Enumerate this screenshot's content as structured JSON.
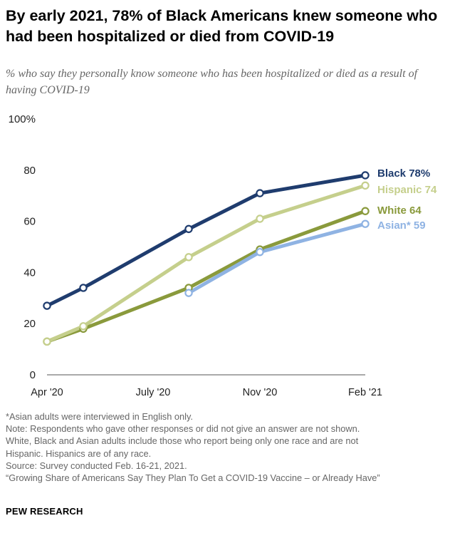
{
  "title": "By early 2021, 78% of Black Americans knew someone who had been hospitalized or died from COVID-19",
  "subtitle": "% who say they personally know someone who has been hospitalized or died as a result of having COVID-19",
  "chart_data": {
    "type": "line",
    "xlabel": "",
    "ylabel": "",
    "x_tick_labels": [
      "Apr '20",
      "July '20",
      "Nov '20",
      "Feb '21"
    ],
    "y_ticks": [
      0,
      20,
      40,
      60,
      80,
      100
    ],
    "y_tick_labels": [
      "0",
      "20",
      "40",
      "60",
      "80",
      "100%"
    ],
    "ylim": [
      0,
      100
    ],
    "grid": false,
    "legend": "direct labels at line ends",
    "series": [
      {
        "name": "White",
        "end_label": "White 64",
        "color": "#8a9a3c",
        "points": [
          {
            "survey": "Apr '20",
            "value": 13
          },
          {
            "survey": "May '20",
            "value": 18
          },
          {
            "survey": "Aug '20",
            "value": 34
          },
          {
            "survey": "Nov '20",
            "value": 49
          },
          {
            "survey": "Feb '21",
            "value": 64
          }
        ]
      },
      {
        "name": "Asian*",
        "end_label": "Asian* 59",
        "color": "#8fb3e3",
        "points": [
          {
            "survey": "Aug '20",
            "value": 32
          },
          {
            "survey": "Nov '20",
            "value": 48
          },
          {
            "survey": "Feb '21",
            "value": 59
          }
        ]
      },
      {
        "name": "Hispanic",
        "end_label": "Hispanic 74",
        "color": "#c5cf8c",
        "points": [
          {
            "survey": "Apr '20",
            "value": 13
          },
          {
            "survey": "May '20",
            "value": 19
          },
          {
            "survey": "Aug '20",
            "value": 46
          },
          {
            "survey": "Nov '20",
            "value": 61
          },
          {
            "survey": "Feb '21",
            "value": 74
          }
        ]
      },
      {
        "name": "Black",
        "end_label": "Black 78%",
        "color": "#1f3c6e",
        "points": [
          {
            "survey": "Apr '20",
            "value": 27
          },
          {
            "survey": "May '20",
            "value": 34
          },
          {
            "survey": "Aug '20",
            "value": 57
          },
          {
            "survey": "Nov '20",
            "value": 71
          },
          {
            "survey": "Feb '21",
            "value": 78
          }
        ]
      }
    ]
  },
  "notes": [
    "*Asian adults were interviewed in English only.",
    "Note: Respondents who gave other responses or did not give an answer are not shown.",
    "White, Black and Asian adults include those who report being only one race and are not",
    "Hispanic. Hispanics are of any race.",
    "Source: Survey conducted Feb. 16-21, 2021.",
    "“Growing Share of Americans Say They Plan To Get a COVID-19 Vaccine – or Already Have”"
  ],
  "brand": "PEW RESEARCH"
}
